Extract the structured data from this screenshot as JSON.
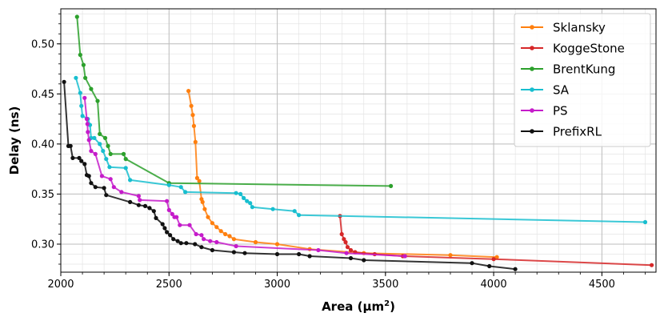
{
  "chart_data": {
    "type": "line",
    "title": "",
    "xlabel": "Area (μm²)",
    "xlabel_parts": {
      "base": "Area (μm",
      "sup": "2",
      "end": ")"
    },
    "ylabel": "Delay (ns)",
    "xlim": [
      2000,
      4750
    ],
    "ylim": [
      0.272,
      0.535
    ],
    "xticks": [
      2000,
      2500,
      3000,
      3500,
      4000,
      4500
    ],
    "xtick_labels": [
      "2000",
      "2500",
      "3000",
      "3500",
      "4000",
      "4500"
    ],
    "yticks": [
      0.3,
      0.35,
      0.4,
      0.45,
      0.5
    ],
    "ytick_labels": [
      "0.30",
      "0.35",
      "0.40",
      "0.45",
      "0.50"
    ],
    "grid": true,
    "legend_position": "top-right",
    "series": [
      {
        "name": "Sklansky",
        "color": "#ff7f0e",
        "points": [
          [
            2590,
            0.453
          ],
          [
            2603,
            0.438
          ],
          [
            2610,
            0.429
          ],
          [
            2615,
            0.418
          ],
          [
            2622,
            0.402
          ],
          [
            2630,
            0.366
          ],
          [
            2640,
            0.363
          ],
          [
            2650,
            0.345
          ],
          [
            2655,
            0.342
          ],
          [
            2665,
            0.335
          ],
          [
            2680,
            0.327
          ],
          [
            2700,
            0.321
          ],
          [
            2720,
            0.317
          ],
          [
            2740,
            0.313
          ],
          [
            2760,
            0.31
          ],
          [
            2780,
            0.308
          ],
          [
            2800,
            0.305
          ],
          [
            2900,
            0.302
          ],
          [
            3000,
            0.3
          ],
          [
            3150,
            0.295
          ],
          [
            3400,
            0.291
          ],
          [
            3800,
            0.289
          ],
          [
            4015,
            0.287
          ]
        ]
      },
      {
        "name": "KoggeStone",
        "color": "#d62728",
        "points": [
          [
            3290,
            0.328
          ],
          [
            3298,
            0.31
          ],
          [
            3308,
            0.305
          ],
          [
            3316,
            0.302
          ],
          [
            3325,
            0.297
          ],
          [
            3340,
            0.294
          ],
          [
            3360,
            0.292
          ],
          [
            3450,
            0.29
          ],
          [
            3580,
            0.288
          ],
          [
            4000,
            0.285
          ],
          [
            4730,
            0.279
          ]
        ]
      },
      {
        "name": "BrentKung",
        "color": "#2ca02c",
        "points": [
          [
            2075,
            0.527
          ],
          [
            2090,
            0.489
          ],
          [
            2105,
            0.479
          ],
          [
            2113,
            0.466
          ],
          [
            2140,
            0.455
          ],
          [
            2170,
            0.443
          ],
          [
            2180,
            0.41
          ],
          [
            2205,
            0.406
          ],
          [
            2218,
            0.398
          ],
          [
            2230,
            0.39
          ],
          [
            2290,
            0.39
          ],
          [
            2300,
            0.385
          ],
          [
            2500,
            0.361
          ],
          [
            3525,
            0.358
          ]
        ]
      },
      {
        "name": "SA",
        "color": "#17becf",
        "points": [
          [
            2070,
            0.466
          ],
          [
            2090,
            0.451
          ],
          [
            2095,
            0.438
          ],
          [
            2100,
            0.428
          ],
          [
            2125,
            0.425
          ],
          [
            2135,
            0.419
          ],
          [
            2140,
            0.406
          ],
          [
            2155,
            0.406
          ],
          [
            2180,
            0.4
          ],
          [
            2195,
            0.393
          ],
          [
            2210,
            0.385
          ],
          [
            2225,
            0.377
          ],
          [
            2300,
            0.376
          ],
          [
            2320,
            0.364
          ],
          [
            2500,
            0.359
          ],
          [
            2555,
            0.357
          ],
          [
            2575,
            0.352
          ],
          [
            2810,
            0.351
          ],
          [
            2830,
            0.35
          ],
          [
            2845,
            0.346
          ],
          [
            2860,
            0.343
          ],
          [
            2875,
            0.341
          ],
          [
            2885,
            0.337
          ],
          [
            2980,
            0.335
          ],
          [
            3080,
            0.333
          ],
          [
            3100,
            0.329
          ],
          [
            4700,
            0.322
          ]
        ]
      },
      {
        "name": "PS",
        "color": "#c51bca",
        "points": [
          [
            2110,
            0.446
          ],
          [
            2120,
            0.425
          ],
          [
            2123,
            0.42
          ],
          [
            2125,
            0.412
          ],
          [
            2130,
            0.404
          ],
          [
            2140,
            0.393
          ],
          [
            2160,
            0.39
          ],
          [
            2190,
            0.368
          ],
          [
            2230,
            0.365
          ],
          [
            2245,
            0.357
          ],
          [
            2280,
            0.352
          ],
          [
            2360,
            0.348
          ],
          [
            2365,
            0.344
          ],
          [
            2490,
            0.343
          ],
          [
            2500,
            0.334
          ],
          [
            2515,
            0.33
          ],
          [
            2525,
            0.327
          ],
          [
            2535,
            0.327
          ],
          [
            2550,
            0.319
          ],
          [
            2595,
            0.319
          ],
          [
            2625,
            0.31
          ],
          [
            2650,
            0.309
          ],
          [
            2660,
            0.305
          ],
          [
            2690,
            0.303
          ],
          [
            2720,
            0.302
          ],
          [
            2810,
            0.298
          ],
          [
            3190,
            0.294
          ],
          [
            3320,
            0.291
          ],
          [
            3590,
            0.288
          ]
        ]
      },
      {
        "name": "PrefixRL",
        "color": "#111111",
        "points": [
          [
            2015,
            0.462
          ],
          [
            2035,
            0.398
          ],
          [
            2045,
            0.398
          ],
          [
            2055,
            0.386
          ],
          [
            2085,
            0.386
          ],
          [
            2095,
            0.383
          ],
          [
            2110,
            0.38
          ],
          [
            2120,
            0.369
          ],
          [
            2130,
            0.368
          ],
          [
            2140,
            0.361
          ],
          [
            2160,
            0.357
          ],
          [
            2200,
            0.356
          ],
          [
            2210,
            0.349
          ],
          [
            2320,
            0.342
          ],
          [
            2360,
            0.339
          ],
          [
            2390,
            0.338
          ],
          [
            2410,
            0.336
          ],
          [
            2430,
            0.333
          ],
          [
            2440,
            0.326
          ],
          [
            2470,
            0.32
          ],
          [
            2480,
            0.316
          ],
          [
            2490,
            0.312
          ],
          [
            2505,
            0.309
          ],
          [
            2520,
            0.305
          ],
          [
            2540,
            0.303
          ],
          [
            2555,
            0.301
          ],
          [
            2580,
            0.301
          ],
          [
            2620,
            0.3
          ],
          [
            2650,
            0.297
          ],
          [
            2700,
            0.294
          ],
          [
            2800,
            0.292
          ],
          [
            2850,
            0.291
          ],
          [
            3000,
            0.29
          ],
          [
            3100,
            0.29
          ],
          [
            3150,
            0.288
          ],
          [
            3340,
            0.286
          ],
          [
            3400,
            0.284
          ],
          [
            3900,
            0.281
          ],
          [
            3980,
            0.278
          ],
          [
            4100,
            0.275
          ]
        ]
      }
    ]
  }
}
